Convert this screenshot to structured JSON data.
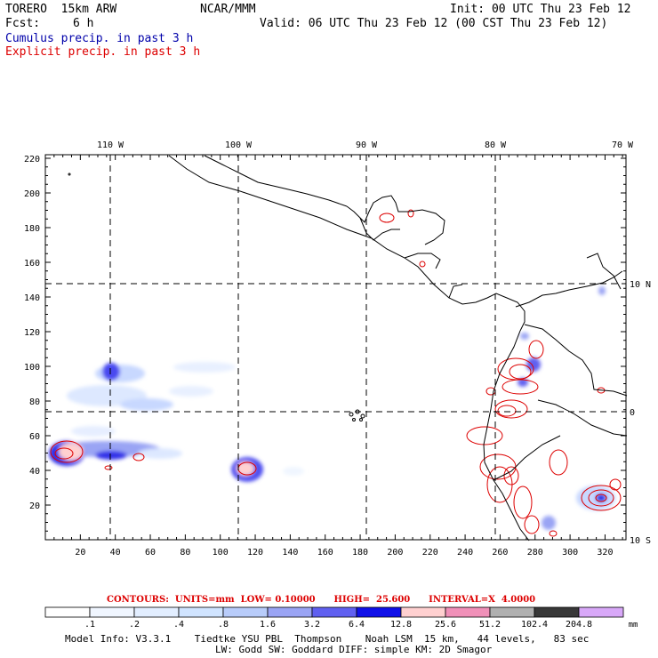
{
  "header": {
    "model": "TORERO  15km ARW",
    "org": "NCAR/MMM",
    "init": "Init: 00 UTC Thu 23 Feb 12",
    "fcst_label": "Fcst:",
    "fcst_value": "6 h",
    "valid": "Valid: 06 UTC Thu 23 Feb 12 (00 CST Thu 23 Feb 12)",
    "cumulus_label": "Cumulus precip. in past 3 h",
    "explicit_label": "Explicit precip. in past 3 h"
  },
  "colors": {
    "cumulus_text": "#0000aa",
    "explicit_text": "#dd0000",
    "contour": "#dd0000",
    "grid": "#000000"
  },
  "map": {
    "lon_labels": [
      "110 W",
      "100 W",
      "90 W",
      "80 W",
      "70 W"
    ],
    "lat_labels": [
      "10 N",
      "0",
      "10 S"
    ],
    "x_ticks": [
      "20",
      "40",
      "60",
      "80",
      "100",
      "120",
      "140",
      "160",
      "180",
      "200",
      "220",
      "240",
      "260",
      "280",
      "300",
      "320"
    ],
    "y_ticks": [
      "20",
      "40",
      "60",
      "80",
      "100",
      "120",
      "140",
      "160",
      "180",
      "200",
      "220"
    ]
  },
  "footer": {
    "contours_line": "CONTOURS:  UNITS=mm  LOW= 0.10000      HIGH=  25.600      INTERVAL=X  4.0000",
    "legend_values": [
      ".1",
      ".2",
      ".4",
      ".8",
      "1.6",
      "3.2",
      "6.4",
      "12.8",
      "25.6",
      "51.2",
      "102.4",
      "204.8"
    ],
    "legend_colors": [
      "#ffffff",
      "#f0f6ff",
      "#e2eeff",
      "#d0e4ff",
      "#b8ccfa",
      "#9aa4f4",
      "#6060f0",
      "#1010e8",
      "#ffd0d0",
      "#f090b8",
      "#b0b0b0",
      "#383838",
      "#d8a8f8"
    ],
    "legend_unit": "mm",
    "model_info_1": "Model Info: V3.3.1    Tiedtke YSU PBL  Thompson    Noah LSM  15 km,   44 levels,   83 sec",
    "model_info_2": "LW: Godd SW: Goddard DIFF: simple KM: 2D Smagor"
  }
}
